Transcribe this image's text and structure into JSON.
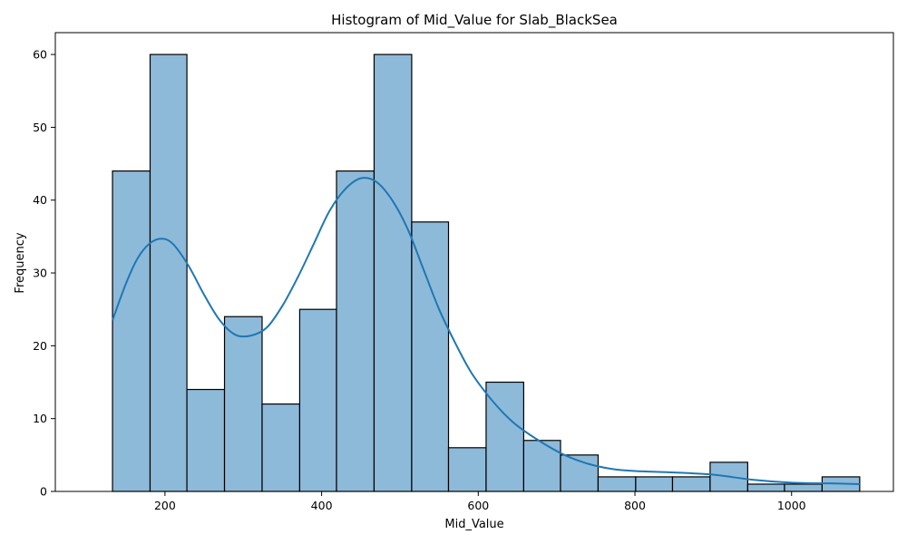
{
  "chart_data": {
    "type": "bar",
    "title": "Histogram of Mid_Value for Slab_BlackSea",
    "xlabel": "Mid_Value",
    "ylabel": "Frequency",
    "xlim": [
      60,
      1130
    ],
    "ylim": [
      0,
      63
    ],
    "xticks": [
      200,
      400,
      600,
      800,
      1000
    ],
    "yticks": [
      0,
      10,
      20,
      30,
      40,
      50,
      60
    ],
    "bins": [
      {
        "start": 133,
        "end": 181,
        "count": 44
      },
      {
        "start": 181,
        "end": 228,
        "count": 60
      },
      {
        "start": 228,
        "end": 276,
        "count": 14
      },
      {
        "start": 276,
        "end": 324,
        "count": 24
      },
      {
        "start": 324,
        "end": 372,
        "count": 12
      },
      {
        "start": 372,
        "end": 419,
        "count": 25
      },
      {
        "start": 419,
        "end": 467,
        "count": 44
      },
      {
        "start": 467,
        "end": 515,
        "count": 60
      },
      {
        "start": 515,
        "end": 562,
        "count": 37
      },
      {
        "start": 562,
        "end": 610,
        "count": 6
      },
      {
        "start": 610,
        "end": 658,
        "count": 15
      },
      {
        "start": 658,
        "end": 705,
        "count": 7
      },
      {
        "start": 705,
        "end": 753,
        "count": 5
      },
      {
        "start": 753,
        "end": 801,
        "count": 2
      },
      {
        "start": 801,
        "end": 848,
        "count": 2
      },
      {
        "start": 848,
        "end": 896,
        "count": 2
      },
      {
        "start": 896,
        "end": 944,
        "count": 4
      },
      {
        "start": 944,
        "end": 991,
        "count": 1
      },
      {
        "start": 991,
        "end": 1039,
        "count": 1
      },
      {
        "start": 1039,
        "end": 1087,
        "count": 2
      }
    ],
    "kde": {
      "x": [
        133,
        150,
        165,
        180,
        195,
        210,
        230,
        250,
        270,
        290,
        310,
        330,
        350,
        370,
        390,
        410,
        430,
        450,
        470,
        490,
        510,
        530,
        550,
        570,
        590,
        610,
        630,
        650,
        680,
        710,
        740,
        770,
        800,
        850,
        900,
        950,
        1000,
        1050,
        1087
      ],
      "y": [
        23.5,
        28.5,
        32,
        34,
        34.7,
        34,
        31,
        27,
        23.5,
        21.5,
        21.4,
        22.5,
        25.5,
        29.5,
        34,
        38.5,
        41.5,
        43,
        42.5,
        40,
        36,
        30.5,
        25,
        20.5,
        16.5,
        13.5,
        11,
        9,
        6.8,
        5,
        3.8,
        3.1,
        2.8,
        2.6,
        2.3,
        1.6,
        1.2,
        1.1,
        1.0
      ]
    },
    "colors": {
      "bar_fill": "#8ebad9",
      "bar_edge": "#000000",
      "kde_line": "#1f77b4"
    },
    "grid": false,
    "legend": "none"
  }
}
